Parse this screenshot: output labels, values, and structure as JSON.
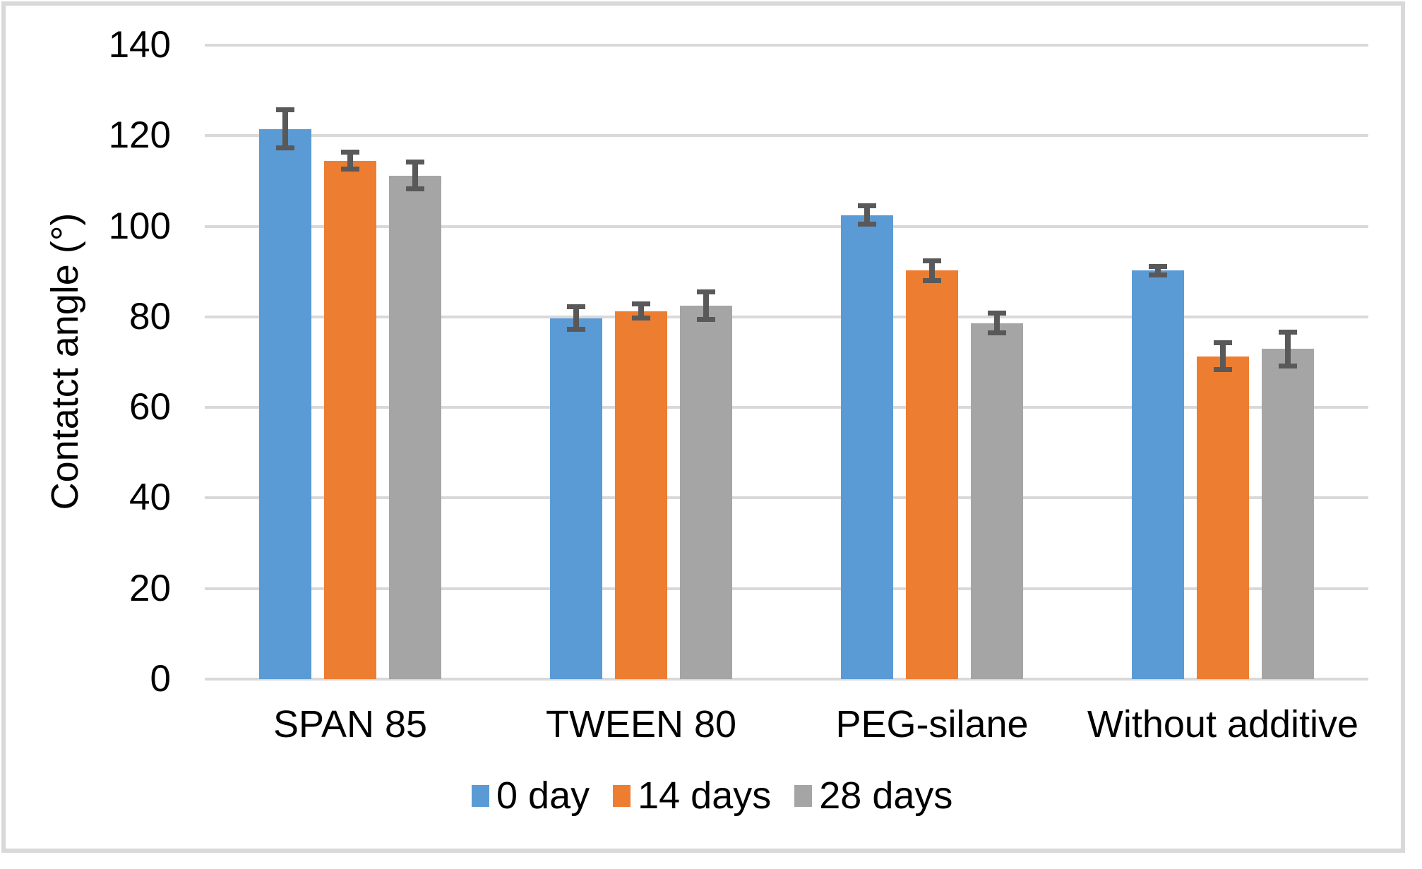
{
  "chart_data": {
    "type": "bar",
    "title": "",
    "xlabel": "",
    "ylabel": "Contatct angle (°)",
    "ylim": [
      0,
      140
    ],
    "yticks": [
      0,
      20,
      40,
      60,
      80,
      100,
      120,
      140
    ],
    "grid": true,
    "legend_position": "bottom",
    "categories": [
      "SPAN 85",
      "TWEEN 80",
      "PEG-silane",
      "Without additive"
    ],
    "series": [
      {
        "name": "0 day",
        "color": "#5B9BD5",
        "values": [
          121.5,
          79.7,
          102.5,
          90.2
        ],
        "errors": [
          4.2,
          2.5,
          2.0,
          1.0
        ]
      },
      {
        "name": "14 days",
        "color": "#ED7D31",
        "values": [
          114.5,
          81.3,
          90.2,
          71.3
        ],
        "errors": [
          1.9,
          1.5,
          2.2,
          3.0
        ]
      },
      {
        "name": "28 days",
        "color": "#A5A5A5",
        "values": [
          111.2,
          82.5,
          78.6,
          72.9
        ],
        "errors": [
          3.0,
          3.0,
          2.2,
          3.8
        ]
      }
    ],
    "colors": {
      "gridline": "#D9D9D9",
      "axis_line": "#D9D9D9",
      "error_bar": "#595959",
      "frame_border": "#D9D9D9",
      "text": "#000000"
    }
  }
}
